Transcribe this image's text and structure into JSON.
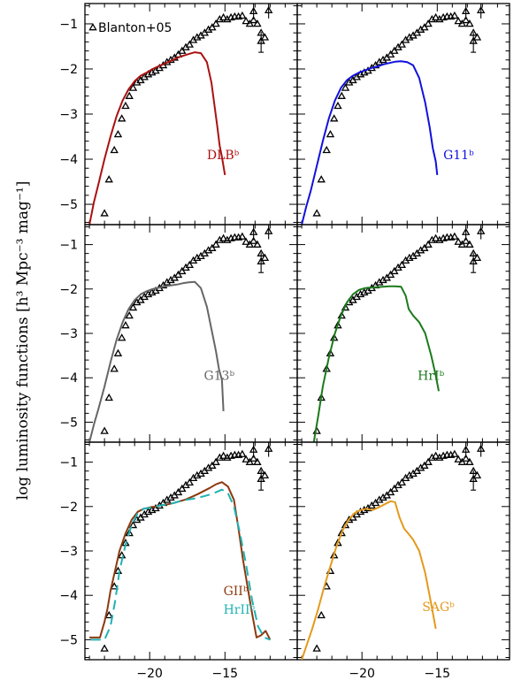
{
  "figure": {
    "y_axis_label": "log luminosity functions  [h³ Mpc⁻³ mag⁻¹]",
    "legend": {
      "marker": "△",
      "label": "Blanton+05"
    }
  },
  "chart_data": {
    "type": "line",
    "xlim": [
      -24.3,
      -10.2
    ],
    "ylim": [
      -5.45,
      -0.55
    ],
    "x_ticks": [
      -20,
      -15
    ],
    "y_ticks": [
      -5,
      -4,
      -3,
      -2,
      -1
    ],
    "grid": false,
    "legend_placement": "top-left (first panel only)",
    "observations": {
      "name": "Blanton+05",
      "marker": "open-triangle",
      "points": [
        [
          -23.0,
          -5.2
        ],
        [
          -22.7,
          -4.45
        ],
        [
          -22.35,
          -3.8
        ],
        [
          -22.1,
          -3.45
        ],
        [
          -21.85,
          -3.1
        ],
        [
          -21.6,
          -2.82
        ],
        [
          -21.35,
          -2.6
        ],
        [
          -21.1,
          -2.42
        ],
        [
          -20.85,
          -2.3
        ],
        [
          -20.6,
          -2.25
        ],
        [
          -20.35,
          -2.18
        ],
        [
          -20.1,
          -2.12
        ],
        [
          -19.85,
          -2.08
        ],
        [
          -19.6,
          -2.04
        ],
        [
          -19.35,
          -1.98
        ],
        [
          -19.1,
          -1.92
        ],
        [
          -18.85,
          -1.85
        ],
        [
          -18.6,
          -1.8
        ],
        [
          -18.35,
          -1.75
        ],
        [
          -18.1,
          -1.68
        ],
        [
          -17.85,
          -1.6
        ],
        [
          -17.6,
          -1.52
        ],
        [
          -17.35,
          -1.46
        ],
        [
          -17.1,
          -1.36
        ],
        [
          -16.85,
          -1.3
        ],
        [
          -16.6,
          -1.26
        ],
        [
          -16.35,
          -1.2
        ],
        [
          -16.1,
          -1.13
        ],
        [
          -15.85,
          -1.08
        ],
        [
          -15.6,
          -1.0
        ],
        [
          -15.35,
          -0.9
        ],
        [
          -15.1,
          -0.86
        ],
        [
          -14.85,
          -0.9
        ],
        [
          -14.6,
          -0.86
        ],
        [
          -14.35,
          -0.84
        ],
        [
          -14.1,
          -0.84
        ],
        [
          -13.85,
          -0.82
        ],
        [
          -13.6,
          -0.94
        ],
        [
          -13.35,
          -1.0
        ],
        [
          -13.1,
          -0.92
        ],
        [
          -12.85,
          -1.0
        ],
        [
          -12.6,
          -1.2
        ],
        [
          -12.35,
          -1.3
        ]
      ],
      "upper_points_with_errorbars": [
        [
          -13.1,
          -0.72
        ],
        [
          -12.1,
          -0.7
        ]
      ],
      "lower_points_with_errorbars": [
        [
          -12.6,
          -1.38
        ]
      ]
    },
    "panels": [
      {
        "label": "DLBᵇ",
        "color": "#aa1111",
        "series": [
          {
            "name": "DLBᵇ",
            "dash": "solid",
            "x": [
              -24.0,
              -23.7,
              -23.4,
              -23.0,
              -22.6,
              -22.2,
              -21.8,
              -21.4,
              -21.0,
              -20.6,
              -20.2,
              -19.8,
              -19.4,
              -19.0,
              -18.6,
              -18.2,
              -17.8,
              -17.4,
              -17.0,
              -16.6,
              -16.2,
              -15.9,
              -15.7,
              -15.5,
              -15.35,
              -15.2,
              -15.0
            ],
            "y": [
              -5.45,
              -4.95,
              -4.55,
              -4.0,
              -3.5,
              -3.05,
              -2.7,
              -2.45,
              -2.27,
              -2.15,
              -2.08,
              -2.0,
              -1.94,
              -1.88,
              -1.82,
              -1.76,
              -1.71,
              -1.67,
              -1.63,
              -1.65,
              -1.85,
              -2.3,
              -2.8,
              -3.3,
              -3.7,
              -3.95,
              -4.35
            ]
          }
        ]
      },
      {
        "label": "G11ᵇ",
        "color": "#1111dd",
        "series": [
          {
            "name": "G11ᵇ",
            "dash": "solid",
            "x": [
              -24.0,
              -23.7,
              -23.4,
              -23.0,
              -22.6,
              -22.2,
              -21.8,
              -21.4,
              -21.0,
              -20.6,
              -20.2,
              -19.8,
              -19.4,
              -19.0,
              -18.6,
              -18.2,
              -17.8,
              -17.4,
              -17.0,
              -16.6,
              -16.2,
              -15.8,
              -15.5,
              -15.3,
              -15.1,
              -15.0
            ],
            "y": [
              -5.45,
              -5.05,
              -4.7,
              -4.15,
              -3.6,
              -3.1,
              -2.7,
              -2.42,
              -2.25,
              -2.15,
              -2.08,
              -2.03,
              -1.98,
              -1.95,
              -1.9,
              -1.87,
              -1.84,
              -1.83,
              -1.85,
              -1.92,
              -2.2,
              -2.75,
              -3.3,
              -3.75,
              -4.05,
              -4.35
            ]
          }
        ]
      },
      {
        "label": "G13ᵇ",
        "color": "#666666",
        "series": [
          {
            "name": "G13ᵇ",
            "dash": "solid",
            "x": [
              -24.0,
              -23.7,
              -23.4,
              -23.0,
              -22.6,
              -22.2,
              -21.8,
              -21.4,
              -21.0,
              -20.6,
              -20.2,
              -19.8,
              -19.4,
              -19.0,
              -18.6,
              -18.2,
              -17.8,
              -17.4,
              -17.0,
              -16.6,
              -16.2,
              -15.9,
              -15.6,
              -15.4,
              -15.2,
              -15.1
            ],
            "y": [
              -5.45,
              -5.05,
              -4.7,
              -4.2,
              -3.65,
              -3.15,
              -2.75,
              -2.45,
              -2.25,
              -2.12,
              -2.05,
              -2.0,
              -1.97,
              -1.94,
              -1.92,
              -1.9,
              -1.87,
              -1.85,
              -1.84,
              -1.98,
              -2.4,
              -2.9,
              -3.4,
              -3.8,
              -4.05,
              -4.75
            ]
          }
        ]
      },
      {
        "label": "HrIᵇ",
        "color": "#1b7a1b",
        "series": [
          {
            "name": "HrIᵇ",
            "dash": "solid",
            "x": [
              -23.2,
              -22.9,
              -22.6,
              -22.2,
              -21.8,
              -21.4,
              -21.0,
              -20.6,
              -20.2,
              -19.8,
              -19.4,
              -19.0,
              -18.6,
              -18.2,
              -17.8,
              -17.4,
              -17.1,
              -16.9,
              -16.6,
              -16.2,
              -15.8,
              -15.4,
              -15.1,
              -14.9
            ],
            "y": [
              -5.45,
              -4.85,
              -4.2,
              -3.55,
              -3.0,
              -2.6,
              -2.3,
              -2.12,
              -2.02,
              -1.98,
              -1.97,
              -1.96,
              -1.95,
              -1.94,
              -1.94,
              -1.95,
              -2.15,
              -2.45,
              -2.6,
              -2.75,
              -3.0,
              -3.5,
              -3.95,
              -4.3
            ]
          }
        ]
      },
      {
        "label_lines": [
          "GIIᵇ",
          "HrIIᵇ"
        ],
        "colors": [
          "#8b3a0f",
          "#20b2b2"
        ],
        "series": [
          {
            "name": "GIIᵇ",
            "dash": "solid",
            "color": "#8b3a0f",
            "x": [
              -24.0,
              -23.6,
              -23.3,
              -23.0,
              -22.8,
              -22.6,
              -22.3,
              -22.0,
              -21.6,
              -21.2,
              -20.8,
              -20.4,
              -20.0,
              -19.6,
              -19.2,
              -18.8,
              -18.4,
              -18.0,
              -17.6,
              -17.2,
              -16.8,
              -16.4,
              -16.0,
              -15.6,
              -15.2,
              -14.8,
              -14.4,
              -14.1,
              -13.8,
              -13.5,
              -13.2,
              -12.9,
              -12.6,
              -12.3,
              -12.0
            ],
            "y": [
              -4.95,
              -4.95,
              -4.95,
              -4.6,
              -4.3,
              -3.9,
              -3.45,
              -3.0,
              -2.6,
              -2.3,
              -2.12,
              -2.05,
              -2.02,
              -2.0,
              -1.97,
              -1.95,
              -1.92,
              -1.88,
              -1.84,
              -1.78,
              -1.72,
              -1.65,
              -1.58,
              -1.5,
              -1.45,
              -1.55,
              -1.85,
              -2.5,
              -3.2,
              -3.8,
              -4.4,
              -4.95,
              -4.9,
              -4.8,
              -5.0
            ]
          },
          {
            "name": "HrIIᵇ",
            "dash": "dashed",
            "color": "#20b2b2",
            "x": [
              -23.9,
              -23.5,
              -23.0,
              -22.6,
              -22.3,
              -22.0,
              -21.6,
              -21.2,
              -20.8,
              -20.4,
              -20.0,
              -19.6,
              -19.2,
              -18.8,
              -18.4,
              -18.0,
              -17.6,
              -17.2,
              -16.8,
              -16.4,
              -16.0,
              -15.6,
              -15.2,
              -14.8,
              -14.4,
              -14.0,
              -13.6,
              -13.2,
              -12.8,
              -12.4,
              -12.0
            ],
            "y": [
              -5.0,
              -5.0,
              -5.0,
              -4.7,
              -4.15,
              -3.45,
              -2.85,
              -2.42,
              -2.15,
              -2.05,
              -2.03,
              -2.0,
              -1.97,
              -1.95,
              -1.92,
              -1.88,
              -1.85,
              -1.83,
              -1.8,
              -1.77,
              -1.73,
              -1.68,
              -1.62,
              -1.7,
              -2.0,
              -2.6,
              -3.3,
              -4.1,
              -4.7,
              -4.95,
              -5.0
            ]
          }
        ]
      },
      {
        "label": "SAGᵇ",
        "color": "#e39a1c",
        "series": [
          {
            "name": "SAGᵇ",
            "dash": "solid",
            "x": [
              -24.0,
              -23.7,
              -23.3,
              -22.9,
              -22.5,
              -22.1,
              -21.7,
              -21.3,
              -20.9,
              -20.5,
              -20.1,
              -19.7,
              -19.3,
              -18.9,
              -18.5,
              -18.1,
              -17.8,
              -17.5,
              -17.2,
              -16.9,
              -16.6,
              -16.2,
              -15.8,
              -15.4,
              -15.1
            ],
            "y": [
              -5.45,
              -5.15,
              -4.75,
              -4.3,
              -3.8,
              -3.35,
              -2.9,
              -2.55,
              -2.3,
              -2.15,
              -2.08,
              -2.05,
              -2.08,
              -2.02,
              -1.95,
              -1.88,
              -1.9,
              -2.25,
              -2.5,
              -2.62,
              -2.75,
              -3.0,
              -3.5,
              -4.2,
              -4.75
            ]
          }
        ]
      }
    ]
  }
}
